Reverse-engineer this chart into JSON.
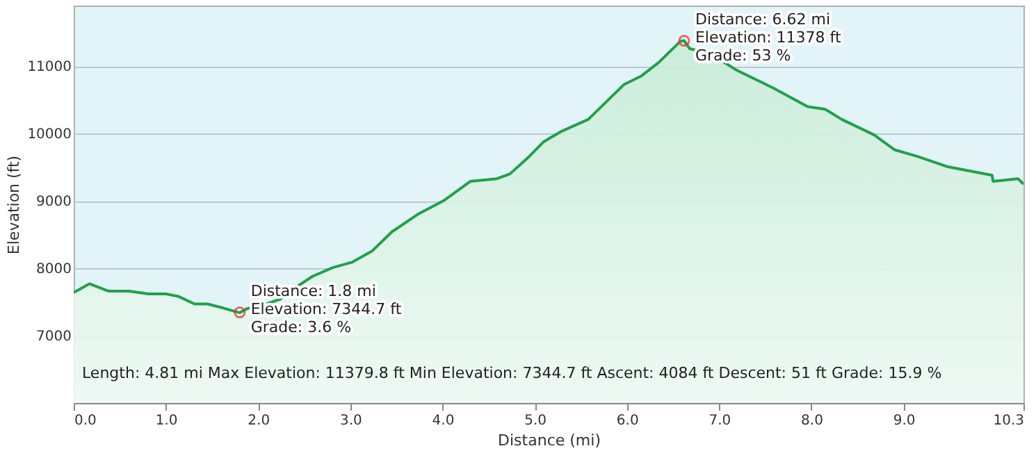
{
  "chart_data": {
    "type": "area",
    "xlabel": "Distance (mi)",
    "ylabel": "Elevation (ft)",
    "x": [
      0,
      0.17,
      0.38,
      0.6,
      0.81,
      1.0,
      1.14,
      1.31,
      1.45,
      1.62,
      1.8,
      1.88,
      2.09,
      2.24,
      2.38,
      2.59,
      2.81,
      3.02,
      3.24,
      3.45,
      3.73,
      4.02,
      4.3,
      4.59,
      4.73,
      4.94,
      5.09,
      5.16,
      5.3,
      5.58,
      5.97,
      6.15,
      6.34,
      6.58,
      6.62,
      6.68,
      6.91,
      7.19,
      7.58,
      7.96,
      8.15,
      8.33,
      8.68,
      8.9,
      9.15,
      9.47,
      9.96,
      9.97,
      10.24,
      10.3
    ],
    "series": [
      {
        "color": "#22a04b",
        "values": [
          7640,
          7770,
          7660,
          7660,
          7620,
          7620,
          7580,
          7470,
          7470,
          7410,
          7340,
          7400,
          7470,
          7540,
          7690,
          7880,
          8010,
          8090,
          8260,
          8540,
          8800,
          9010,
          9290,
          9330,
          9400,
          9660,
          9870,
          9930,
          10040,
          10210,
          10730,
          10850,
          11050,
          11370,
          11380,
          11260,
          11180,
          10940,
          10680,
          10400,
          10360,
          10210,
          9980,
          9760,
          9660,
          9510,
          9380,
          9290,
          9330,
          9250
        ]
      }
    ],
    "xlim": [
      0,
      10.3
    ],
    "xticks": [
      {
        "value": 0,
        "label": "0.0"
      },
      {
        "value": 1,
        "label": "1.0"
      },
      {
        "value": 2,
        "label": "2.0"
      },
      {
        "value": 3,
        "label": "3.0"
      },
      {
        "value": 4,
        "label": "4.0"
      },
      {
        "value": 5,
        "label": "5.0"
      },
      {
        "value": 6,
        "label": "6.0"
      },
      {
        "value": 7,
        "label": "7.0"
      },
      {
        "value": 8,
        "label": "8.0"
      },
      {
        "value": 9,
        "label": "9.0"
      },
      10.3
    ],
    "ylim": [
      6000,
      11900
    ],
    "yticks": [
      7000,
      8000,
      9000,
      10000,
      11000
    ],
    "grid": "y",
    "annotations": [
      {
        "text": "Distance: 1.8 mi\nElevation: 7344.7 ft\nGrade: 3.6 %",
        "x": 1.8,
        "y": 7344.7
      },
      {
        "text": "Distance: 6.62 mi\nElevation: 11378 ft\nGrade: 53 %",
        "x": 6.62,
        "y": 11378
      },
      "Length: 4.81 mi    Max Elevation: 11379.8 ft    Min Elevation: 7344.7 ft    Ascent: 4084 ft    Descent: 51 ft    Grade: 15.9 %"
    ]
  }
}
